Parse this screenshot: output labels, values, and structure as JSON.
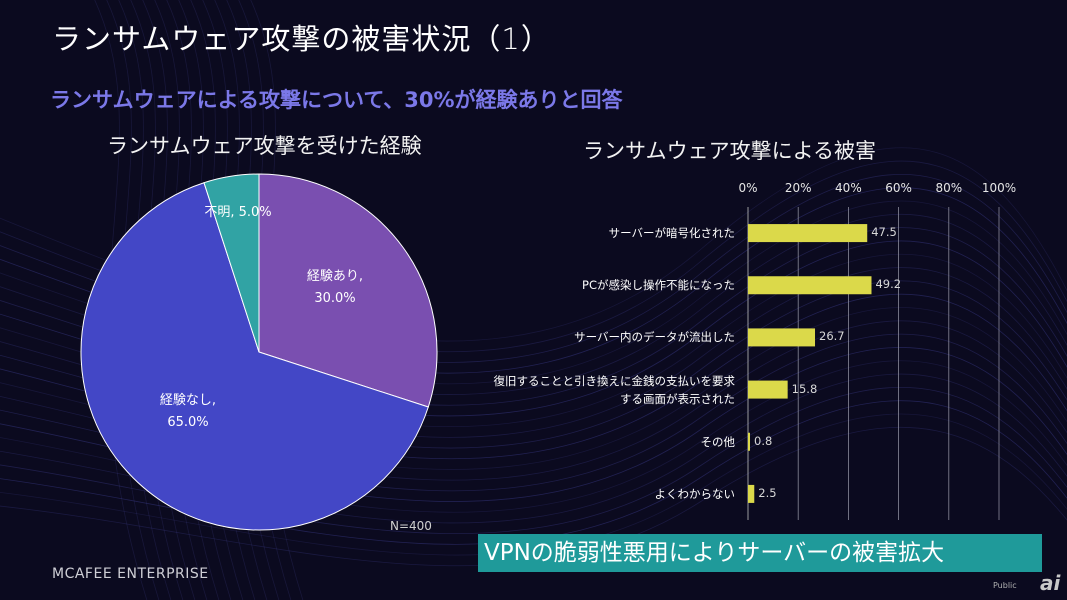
{
  "slide": {
    "title": "ランサムウェア攻撃の被害状況（1）",
    "subtitle": "ランサムウェアによる攻撃について、30%が経験ありと回答",
    "highlight": "VPNの脆弱性悪用によりサーバーの被害拡大",
    "brand": "MCAFEE ENTERPRISE",
    "public_label": "Public",
    "logo_text": "ai",
    "colors": {
      "background": "#0b0a1f",
      "subtitle": "#7b78e8",
      "highlight_bg": "#1f9a9a",
      "bar": "#dbd94a"
    }
  },
  "chart_data": [
    {
      "type": "pie",
      "title": "ランサムウェア攻撃を受けた経験",
      "note": "N=400",
      "slices": [
        {
          "label": "経験あり,",
          "value_text": "30.0%",
          "value": 30.0,
          "color": "#7a4fb0"
        },
        {
          "label": "経験なし,",
          "value_text": "65.0%",
          "value": 65.0,
          "color": "#4347c6"
        },
        {
          "label": "不明, 5.0%",
          "value_text": "",
          "value": 5.0,
          "color": "#31a3a4"
        }
      ]
    },
    {
      "type": "bar",
      "orientation": "horizontal",
      "title": "ランサムウェア攻撃による被害",
      "xlim": [
        0,
        100
      ],
      "xticks": [
        "0%",
        "20%",
        "40%",
        "60%",
        "80%",
        "100%"
      ],
      "categories": [
        "サーバーが暗号化された",
        "PCが感染し操作不能になった",
        "サーバー内のデータが流出した",
        "復旧することと引き換えに金銭の支払いを要求する画面が表示された",
        "その他",
        "よくわからない"
      ],
      "category_lines": [
        [
          "サーバーが暗号化された"
        ],
        [
          "PCが感染し操作不能になった"
        ],
        [
          "サーバー内のデータが流出した"
        ],
        [
          "復旧することと引き換えに金銭の支払いを要求",
          "する画面が表示された"
        ],
        [
          "その他"
        ],
        [
          "よくわからない"
        ]
      ],
      "values": [
        47.5,
        49.2,
        26.7,
        15.8,
        0.8,
        2.5
      ],
      "value_labels": [
        "47.5",
        "49.2",
        "26.7",
        "15.8",
        "0.8",
        "2.5"
      ]
    }
  ]
}
